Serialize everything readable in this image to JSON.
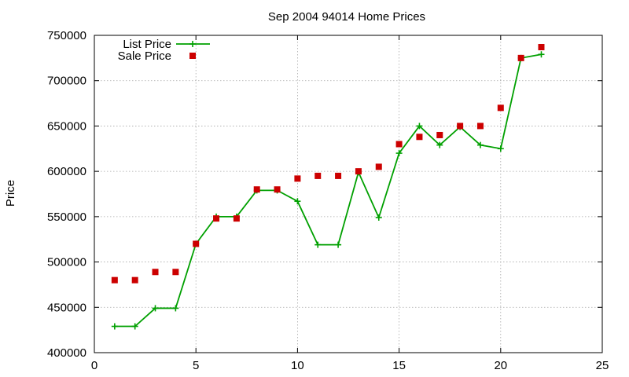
{
  "chart_data": {
    "type": "line",
    "title": "Sep 2004 94014 Home Prices",
    "xlabel": "",
    "ylabel": "Price",
    "xlim": [
      0,
      25
    ],
    "ylim": [
      400000,
      750000
    ],
    "x_ticks": [
      0,
      5,
      10,
      15,
      20,
      25
    ],
    "y_ticks": [
      400000,
      450000,
      500000,
      550000,
      600000,
      650000,
      700000,
      750000
    ],
    "grid": true,
    "legend_position": "top-left",
    "series": [
      {
        "name": "List Price",
        "style": "line-plus",
        "color": "#00a000",
        "x": [
          1,
          2,
          3,
          4,
          5,
          6,
          7,
          8,
          9,
          10,
          11,
          12,
          13,
          14,
          15,
          16,
          17,
          18,
          19,
          20,
          21,
          22
        ],
        "values": [
          429000,
          429000,
          449000,
          449000,
          520000,
          550000,
          550000,
          579000,
          579000,
          567000,
          519000,
          519000,
          599000,
          549000,
          620000,
          650000,
          629000,
          649000,
          629000,
          625000,
          725000,
          729000
        ]
      },
      {
        "name": "Sale Price",
        "style": "square-markers",
        "color": "#cc0000",
        "x": [
          1,
          2,
          3,
          4,
          5,
          6,
          7,
          8,
          9,
          10,
          11,
          12,
          13,
          14,
          15,
          16,
          17,
          18,
          19,
          20,
          21,
          22
        ],
        "values": [
          480000,
          480000,
          489000,
          489000,
          520000,
          548000,
          548000,
          580000,
          580000,
          592000,
          595000,
          595000,
          600000,
          605000,
          630000,
          638000,
          640000,
          650000,
          650000,
          670000,
          725000,
          737000
        ]
      }
    ]
  }
}
